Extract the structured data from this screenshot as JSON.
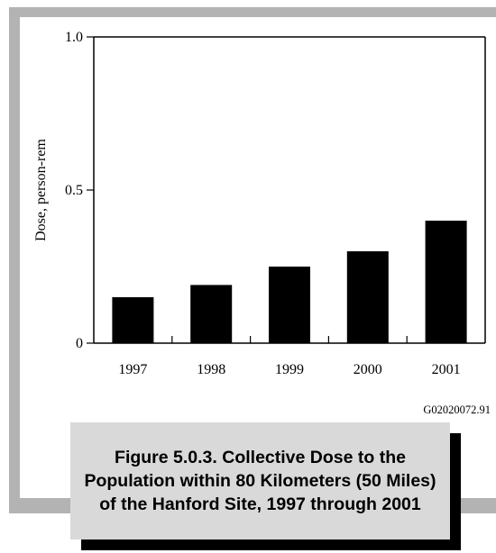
{
  "chart_data": {
    "type": "bar",
    "categories": [
      "1997",
      "1998",
      "1999",
      "2000",
      "2001"
    ],
    "values": [
      0.15,
      0.19,
      0.25,
      0.3,
      0.4
    ],
    "ylabel": "Dose, person-rem",
    "xlabel": "",
    "ylim": [
      0,
      1.0
    ],
    "yticks": [
      0,
      0.5,
      1.0
    ],
    "ytick_labels": [
      "0",
      "0.5",
      "1.0"
    ],
    "bar_color": "#000000",
    "grid": false
  },
  "figure_id": "G02020072.91",
  "caption": "Figure 5.0.3.  Collective Dose to the Population within 80 Kilometers (50 Miles) of the Hanford Site, 1997 through 2001"
}
